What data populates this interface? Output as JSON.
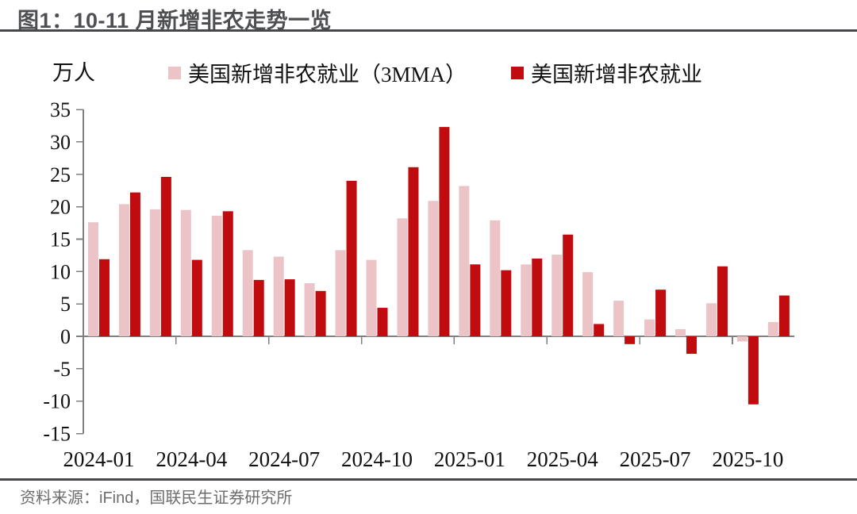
{
  "figure": {
    "title": "图1：10-11 月新增非农走势一览",
    "source": "资料来源：iFind，国联民生证券研究所"
  },
  "chart_data": {
    "type": "bar",
    "title": "10-11 月新增非农走势一览",
    "unit": "万人",
    "ylabel": "万人",
    "xlabel": "",
    "grid": false,
    "legend_position": "top",
    "ylim": [
      -15,
      35
    ],
    "yticks": [
      35,
      30,
      25,
      20,
      15,
      10,
      5,
      0,
      -5,
      -10,
      -15
    ],
    "xtick_labels": [
      "2024-01",
      "2024-04",
      "2024-07",
      "2024-10",
      "2025-01",
      "2025-04",
      "2025-07",
      "2025-10"
    ],
    "xtick_every": 3,
    "categories": [
      "2024-01",
      "2024-02",
      "2024-03",
      "2024-04",
      "2024-05",
      "2024-06",
      "2024-07",
      "2024-08",
      "2024-09",
      "2024-10",
      "2024-11",
      "2024-12",
      "2025-01",
      "2025-02",
      "2025-03",
      "2025-04",
      "2025-05",
      "2025-06",
      "2025-07",
      "2025-08",
      "2025-09",
      "2025-10",
      "2025-11"
    ],
    "series": [
      {
        "key": "3mma",
        "name": "美国新增非农就业（3MMA）",
        "color": "#ecc4c7",
        "values": [
          17.6,
          20.4,
          19.6,
          19.5,
          18.6,
          13.3,
          12.3,
          8.2,
          13.3,
          11.8,
          18.2,
          20.9,
          23.2,
          17.9,
          11.1,
          12.6,
          9.9,
          5.5,
          2.6,
          1.1,
          5.1,
          -0.8,
          2.2
        ]
      },
      {
        "key": "nfp",
        "name": "美国新增非农就业",
        "color": "#c00b0f",
        "values": [
          11.9,
          22.2,
          24.6,
          11.8,
          19.3,
          8.7,
          8.8,
          7.0,
          24.0,
          4.4,
          26.1,
          32.3,
          11.1,
          10.2,
          12.0,
          15.7,
          1.9,
          -1.2,
          7.2,
          -2.7,
          10.8,
          -10.5,
          6.3
        ]
      }
    ]
  },
  "colors": {
    "axis": "#808080",
    "rule": "#47484b",
    "title_text": "#4e4f52",
    "source_text": "#6d6d6d"
  }
}
